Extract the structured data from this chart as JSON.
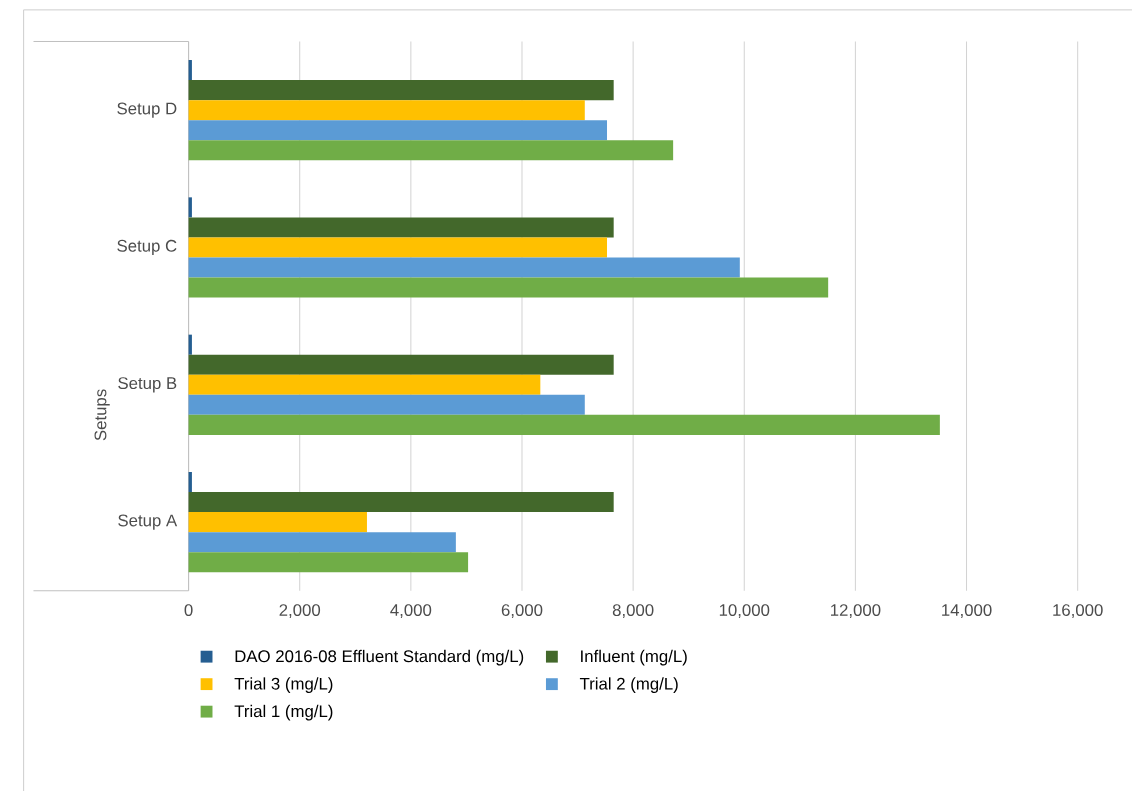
{
  "chart_data": {
    "type": "bar",
    "orientation": "horizontal",
    "ylabel": "Setups",
    "categories": [
      "Setup D",
      "Setup C",
      "Setup B",
      "Setup A"
    ],
    "series": [
      {
        "name": "DAO 2016-08 Effluent Standard (mg/L)",
        "color": "#255e91",
        "values": [
          60,
          60,
          60,
          60
        ]
      },
      {
        "name": "Influent (mg/L)",
        "color": "#43682b",
        "values": [
          7650,
          7650,
          7650,
          7650
        ]
      },
      {
        "name": "Trial 3 (mg/L)",
        "color": "#ffc000",
        "values": [
          7130,
          7530,
          6330,
          3210
        ]
      },
      {
        "name": "Trial 2 (mg/L)",
        "color": "#5b9bd5",
        "values": [
          7530,
          9920,
          7130,
          4810
        ]
      },
      {
        "name": "Trial 1 (mg/L)",
        "color": "#70ad47",
        "values": [
          8720,
          11510,
          13520,
          5030
        ]
      }
    ],
    "xlim": [
      0,
      16000
    ],
    "xticks": [
      {
        "value": 0,
        "label": "0"
      },
      {
        "value": 2000,
        "label": "2,000"
      },
      {
        "value": 4000,
        "label": "4,000"
      },
      {
        "value": 6000,
        "label": "6,000"
      },
      {
        "value": 8000,
        "label": "8,000"
      },
      {
        "value": 10000,
        "label": "10,000"
      },
      {
        "value": 12000,
        "label": "12,000"
      },
      {
        "value": 14000,
        "label": "14,000"
      },
      {
        "value": 16000,
        "label": "16,000"
      }
    ],
    "grid": "x",
    "legend": "bottom"
  }
}
